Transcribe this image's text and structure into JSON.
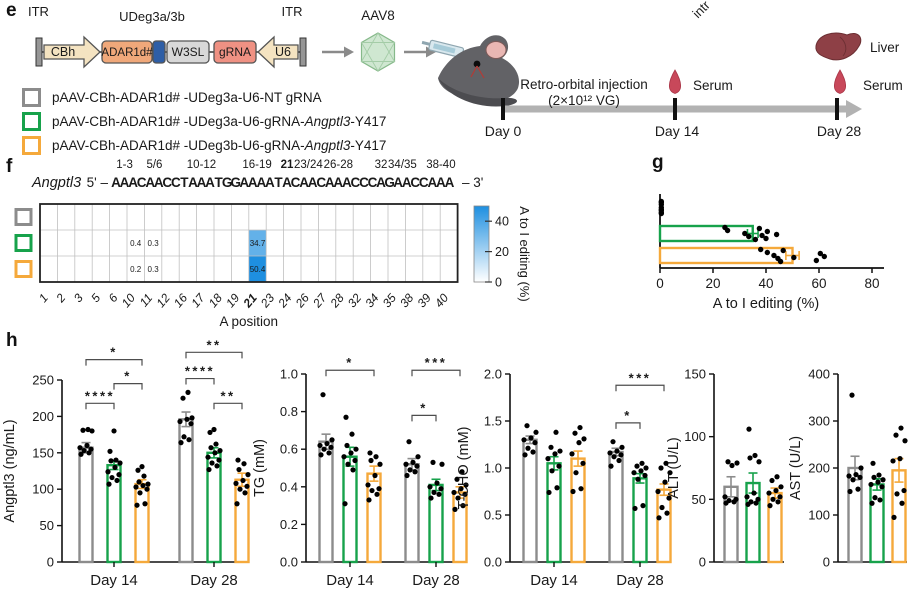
{
  "labels": {
    "e": "e",
    "f": "f",
    "g": "g",
    "h": "h"
  },
  "colors": {
    "gray": "#8c8c8c",
    "green": "#17a24b",
    "orange": "#f5a93b",
    "seq_red": "#e8251f",
    "seq_red_bold": "#c2160f",
    "heat_blue": "#1e8fe0"
  },
  "panel_e": {
    "construct": {
      "itr_left": "ITR",
      "itr_right": "ITR",
      "udeg": "UDeg3a/3b",
      "cbh": "CBh",
      "adar": "ADAR1d#",
      "w3sl": "W3SL",
      "grna": "gRNA",
      "u6": "U6"
    },
    "aav": "AAV8",
    "cropped_text": "intr",
    "legend": [
      {
        "color": "#8c8c8c",
        "prefix": "pAAV-CBh-ADAR1d# -UDeg3a-U6-NT gRNA",
        "italic": "",
        "suffix": ""
      },
      {
        "color": "#17a24b",
        "prefix": "pAAV-CBh-ADAR1d# -UDeg3a-U6-gRNA-",
        "italic": "Angptl3",
        "suffix": "-Y417"
      },
      {
        "color": "#f5a93b",
        "prefix": "pAAV-CBh-ADAR1d# -UDeg3b-U6-gRNA-",
        "italic": "Angptl3",
        "suffix": "-Y417"
      }
    ],
    "timeline": {
      "injection1": "Retro-orbital injection",
      "injection2": "(2×10¹² VG)",
      "day0": "Day 0",
      "day14": "Day 14",
      "day28": "Day 28",
      "serum14": "Serum",
      "liver": "Liver",
      "serum28": "Serum"
    }
  },
  "panel_f": {
    "gene": "Angptl3",
    "five_prime": "5' –",
    "three_prime": "– 3'",
    "sequence": "AAACAACCTAAATGGAAAATACAACAAACCCAGAACCAAA",
    "bold_position": 21,
    "group_labels": [
      {
        "text": "1-3",
        "start": 1,
        "end": 3
      },
      {
        "text": "5/6",
        "start": 5,
        "end": 6
      },
      {
        "text": "10-12",
        "start": 10,
        "end": 12
      },
      {
        "text": "16-19",
        "start": 16,
        "end": 19
      },
      {
        "text": "21",
        "start": 21,
        "end": 21,
        "bold": true
      },
      {
        "text": "23/24",
        "start": 23,
        "end": 24
      },
      {
        "text": "26-28",
        "start": 26,
        "end": 28
      },
      {
        "text": "32",
        "start": 32,
        "end": 32
      },
      {
        "text": "34/35",
        "start": 34,
        "end": 35
      },
      {
        "text": "38-40",
        "start": 38,
        "end": 40
      }
    ]
  },
  "chart_data": [
    {
      "id": "f-heatmap",
      "type": "heatmap",
      "xlabel": "A position",
      "columns": [
        1,
        2,
        3,
        5,
        6,
        10,
        11,
        12,
        16,
        17,
        18,
        19,
        21,
        23,
        24,
        26,
        27,
        28,
        32,
        34,
        35,
        38,
        39,
        40
      ],
      "bold_column": 21,
      "rows": [
        {
          "color": "#8c8c8c",
          "cells": {}
        },
        {
          "color": "#17a24b",
          "cells": {
            "10": 0.4,
            "11": 0.3,
            "21": 34.7
          }
        },
        {
          "color": "#f5a93b",
          "cells": {
            "10": 0.2,
            "11": 0.3,
            "21": 50.4
          }
        }
      ],
      "colorbar": {
        "label": "A to I editing (%)",
        "ticks": [
          0,
          20,
          40
        ],
        "vmax": 50
      }
    },
    {
      "id": "g-editing",
      "type": "bar-horizontal",
      "xlabel": "A to I editing (%)",
      "xlim": [
        0,
        80
      ],
      "xticks": [
        0,
        20,
        40,
        60,
        80
      ],
      "rows": [
        {
          "color": "#8c8c8c",
          "value": 0,
          "err": 0,
          "dots": [
            0.5,
            0.5,
            0.5,
            0.5,
            0.5,
            0.5,
            0.5,
            0.5
          ]
        },
        {
          "color": "#17a24b",
          "value": 35,
          "err": 2,
          "dots": [
            24.5,
            25.5,
            32,
            33.5,
            36,
            37.5,
            38.5,
            40,
            40.5,
            44
          ]
        },
        {
          "color": "#f5a93b",
          "value": 50,
          "err": 2.5,
          "dots": [
            38,
            40.5,
            43,
            44.5,
            45.5,
            46.5,
            50.5,
            59,
            60.5,
            62
          ]
        }
      ]
    },
    {
      "id": "h-angptl3",
      "type": "bar-vertical",
      "ylabel": "Angptl3 (ng/mL)",
      "ylim": [
        0,
        250
      ],
      "yticks": [
        "0",
        "50",
        "100",
        "150",
        "200",
        "250"
      ],
      "groups": [
        {
          "label": "Day 14",
          "bars": [
            {
              "value": 157,
              "err": 7,
              "dots": [
                148,
                150,
                153,
                155,
                157,
                160,
                180,
                181,
                182
              ]
            },
            {
              "value": 133,
              "err": 6,
              "dots": [
                107,
                112,
                116,
                120,
                124,
                130,
                136,
                139,
                140,
                152,
                180
              ]
            },
            {
              "value": 107,
              "err": 6,
              "dots": [
                78,
                80,
                95,
                100,
                103,
                105,
                107,
                110,
                118,
                126,
                131
              ]
            }
          ]
        },
        {
          "label": "Day 28",
          "bars": [
            {
              "value": 196,
              "err": 10,
              "dots": [
                164,
                168,
                172,
                190,
                193,
                196,
                198,
                225,
                233
              ]
            },
            {
              "value": 150,
              "err": 7,
              "dots": [
                127,
                132,
                136,
                140,
                144,
                150,
                153,
                157,
                162,
                178,
                182
              ]
            },
            {
              "value": 113,
              "err": 9,
              "dots": [
                80,
                95,
                100,
                104,
                108,
                112,
                120,
                127,
                135,
                140
              ]
            }
          ]
        }
      ],
      "brackets": [
        {
          "group": 0,
          "from": 0,
          "to": 1,
          "y": 218,
          "label": "****"
        },
        {
          "group": 0,
          "from": 1,
          "to": 2,
          "y": 245,
          "label": "*"
        },
        {
          "group": 0,
          "from": 0,
          "to": 2,
          "y": 278,
          "label": "*"
        },
        {
          "group": 1,
          "from": 1,
          "to": 2,
          "y": 218,
          "label": "**"
        },
        {
          "group": 1,
          "from": 0,
          "to": 1,
          "y": 252,
          "label": "****"
        },
        {
          "group": 1,
          "from": 0,
          "to": 2,
          "y": 288,
          "label": "**"
        }
      ]
    },
    {
      "id": "h-tg",
      "type": "bar-vertical",
      "ylabel": "TG (mM)",
      "ylim": [
        0,
        1.0
      ],
      "yticks": [
        "0.0",
        "0.2",
        "0.4",
        "0.6",
        "0.8",
        "1.0"
      ],
      "groups": [
        {
          "label": "Day 14",
          "bars": [
            {
              "value": 0.64,
              "err": 0.04,
              "dots": [
                0.57,
                0.58,
                0.6,
                0.61,
                0.62,
                0.63,
                0.65,
                0.89
              ]
            },
            {
              "value": 0.56,
              "err": 0.05,
              "dots": [
                0.31,
                0.49,
                0.52,
                0.54,
                0.56,
                0.58,
                0.6,
                0.62,
                0.68,
                0.77
              ]
            },
            {
              "value": 0.47,
              "err": 0.04,
              "dots": [
                0.33,
                0.36,
                0.38,
                0.39,
                0.41,
                0.46,
                0.52,
                0.54,
                0.56,
                0.58
              ]
            }
          ]
        },
        {
          "label": "Day 28",
          "bars": [
            {
              "value": 0.52,
              "err": 0.03,
              "dots": [
                0.46,
                0.48,
                0.49,
                0.51,
                0.52,
                0.53,
                0.56,
                0.64
              ]
            },
            {
              "value": 0.41,
              "err": 0.03,
              "dots": [
                0.34,
                0.36,
                0.37,
                0.39,
                0.4,
                0.42,
                0.52,
                0.53
              ]
            },
            {
              "value": 0.37,
              "err": 0.03,
              "dots": [
                0.28,
                0.3,
                0.34,
                0.36,
                0.37,
                0.39,
                0.41,
                0.44,
                0.48
              ]
            }
          ]
        }
      ],
      "brackets": [
        {
          "group": 0,
          "from": 0,
          "to": 2,
          "y": 1.02,
          "label": "*"
        },
        {
          "group": 1,
          "from": 0,
          "to": 1,
          "y": 0.78,
          "label": "*"
        },
        {
          "group": 1,
          "from": 0,
          "to": 2,
          "y": 1.02,
          "label": "***"
        }
      ]
    },
    {
      "id": "h-tcho",
      "type": "bar-vertical",
      "ylabel": "T-CHO (mM)",
      "ylim": [
        0,
        2.0
      ],
      "yticks": [
        "0.0",
        "0.5",
        "1.0",
        "1.5",
        "2.0"
      ],
      "groups": [
        {
          "label": "Day 14",
          "bars": [
            {
              "value": 1.3,
              "err": 0.04,
              "dots": [
                1.14,
                1.17,
                1.21,
                1.27,
                1.3,
                1.32,
                1.38,
                1.45
              ]
            },
            {
              "value": 1.05,
              "err": 0.07,
              "dots": [
                0.74,
                0.79,
                0.97,
                1.02,
                1.1,
                1.15,
                1.18,
                1.22,
                1.38
              ]
            },
            {
              "value": 1.1,
              "err": 0.08,
              "dots": [
                0.75,
                0.78,
                0.95,
                1.05,
                1.15,
                1.27,
                1.31,
                1.37,
                1.43
              ]
            }
          ]
        },
        {
          "label": "Day 28",
          "bars": [
            {
              "value": 1.17,
              "err": 0.04,
              "dots": [
                1.02,
                1.08,
                1.12,
                1.14,
                1.16,
                1.18,
                1.22,
                1.28
              ]
            },
            {
              "value": 0.89,
              "err": 0.05,
              "dots": [
                0.57,
                0.6,
                0.88,
                0.92,
                0.95,
                0.97,
                1.0,
                1.02,
                1.05
              ]
            },
            {
              "value": 0.77,
              "err": 0.06,
              "dots": [
                0.47,
                0.52,
                0.58,
                0.68,
                0.75,
                0.85,
                0.95,
                1.0,
                1.05
              ]
            }
          ]
        }
      ],
      "brackets": [
        {
          "group": 1,
          "from": 0,
          "to": 1,
          "y": 1.48,
          "label": "*"
        },
        {
          "group": 1,
          "from": 0,
          "to": 2,
          "y": 1.88,
          "label": "***"
        }
      ]
    },
    {
      "id": "h-alt",
      "type": "bar-vertical",
      "ylabel": "ALT (U/L)",
      "ylim": [
        0,
        150
      ],
      "yticks": [
        "0",
        "50",
        "100",
        "150"
      ],
      "groups": [
        {
          "label": "",
          "bars": [
            {
              "value": 60,
              "err": 8,
              "dots": [
                47,
                48,
                49,
                50,
                52,
                77,
                79,
                80
              ]
            },
            {
              "value": 63,
              "err": 8,
              "dots": [
                46,
                47,
                48,
                50,
                52,
                55,
                80,
                83,
                85,
                106
              ]
            },
            {
              "value": 55,
              "err": 4,
              "dots": [
                45,
                48,
                50,
                52,
                55,
                57,
                60,
                65,
                68
              ]
            }
          ]
        }
      ],
      "brackets": []
    },
    {
      "id": "h-ast",
      "type": "bar-vertical",
      "ylabel": "AST (U/L)",
      "ylim": [
        0,
        400
      ],
      "yticks": [
        "0",
        "100",
        "200",
        "300",
        "400"
      ],
      "groups": [
        {
          "label": "",
          "bars": [
            {
              "value": 200,
              "err": 25,
              "dots": [
                150,
                155,
                175,
                180,
                183,
                186,
                200,
                355
              ]
            },
            {
              "value": 165,
              "err": 12,
              "dots": [
                125,
                132,
                137,
                160,
                165,
                170,
                175,
                180,
                185,
                210
              ]
            },
            {
              "value": 195,
              "err": 25,
              "dots": [
                95,
                125,
                145,
                152,
                215,
                220,
                258,
                270,
                285
              ]
            }
          ]
        }
      ],
      "brackets": []
    }
  ]
}
